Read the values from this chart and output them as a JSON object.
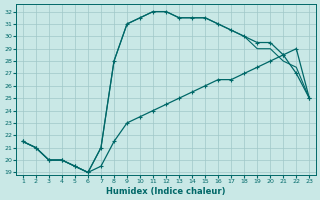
{
  "xlabel": "Humidex (Indice chaleur)",
  "bg_color": "#c9e8e6",
  "grid_color": "#a0c8c8",
  "line_color": "#006868",
  "xticks": [
    1,
    2,
    3,
    4,
    5,
    6,
    7,
    8,
    9,
    10,
    11,
    12,
    13,
    14,
    15,
    16,
    17,
    18,
    19,
    20,
    21,
    22,
    23
  ],
  "yticks": [
    19,
    20,
    21,
    22,
    23,
    24,
    25,
    26,
    27,
    28,
    29,
    30,
    31,
    32
  ],
  "xlim": [
    0.5,
    23.5
  ],
  "ylim": [
    18.8,
    32.6
  ],
  "line1_x": [
    1,
    2,
    3,
    4,
    5,
    6,
    7,
    8,
    9,
    10,
    11,
    12,
    13,
    14,
    15,
    16,
    17,
    18,
    19,
    20,
    21,
    22,
    23
  ],
  "line1_y": [
    21.5,
    21.0,
    20.0,
    20.0,
    19.5,
    19.0,
    21.0,
    28.0,
    31.0,
    31.5,
    32.0,
    32.0,
    31.5,
    31.5,
    31.5,
    31.0,
    30.5,
    30.0,
    29.5,
    29.5,
    28.5,
    27.0,
    25.0
  ],
  "line2_x": [
    1,
    2,
    3,
    4,
    5,
    6,
    7,
    8,
    9,
    10,
    11,
    12,
    13,
    14,
    15,
    16,
    17,
    18,
    19,
    20,
    21,
    22,
    23
  ],
  "line2_y": [
    21.5,
    21.0,
    20.0,
    20.0,
    19.5,
    19.0,
    19.5,
    21.5,
    23.0,
    23.5,
    24.0,
    24.5,
    25.0,
    25.5,
    26.0,
    26.5,
    26.5,
    27.0,
    27.5,
    28.0,
    28.5,
    29.0,
    25.0
  ],
  "line3_x": [
    1,
    2,
    3,
    4,
    5,
    6,
    7,
    8,
    9,
    10,
    11,
    12,
    13,
    14,
    15,
    16,
    17,
    18,
    19,
    20,
    21,
    22,
    23
  ],
  "line3_y": [
    21.5,
    21.0,
    20.0,
    20.0,
    19.5,
    19.0,
    21.0,
    28.0,
    31.0,
    31.5,
    32.0,
    32.0,
    31.5,
    31.5,
    31.5,
    31.0,
    30.5,
    30.0,
    29.0,
    29.0,
    28.0,
    27.5,
    25.0
  ]
}
